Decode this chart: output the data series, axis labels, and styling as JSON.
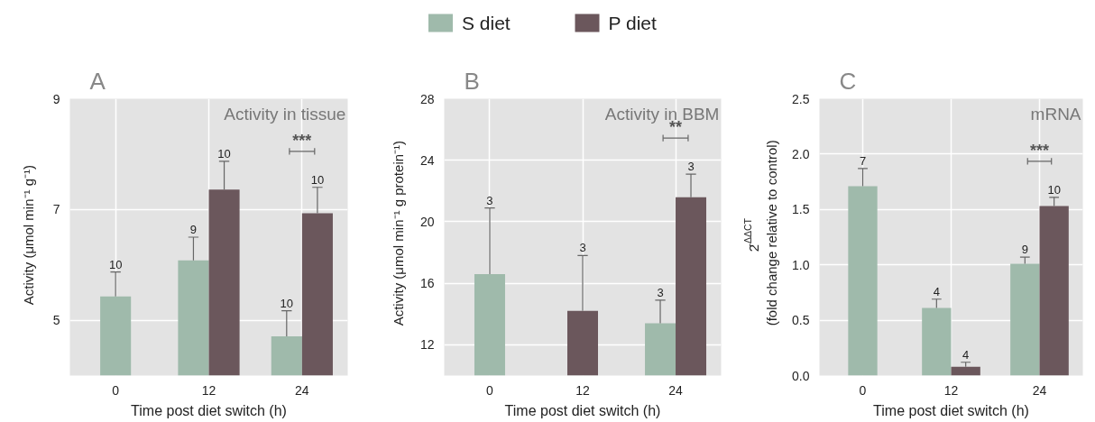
{
  "chart_data": [
    {
      "type": "bar",
      "title": "A",
      "xlabel": "Time post diet switch (h)",
      "ylabel": "Activity (μmol min⁻¹ g⁻¹)",
      "categories": [
        "0",
        "12",
        "24"
      ],
      "ylim": [
        4,
        9
      ],
      "yticks": [
        5,
        7,
        9
      ],
      "grid": true,
      "legend": "top",
      "series": [
        {
          "name": "S diet",
          "color": "#9fbaab",
          "values": [
            5.43,
            6.08,
            4.71
          ],
          "errors": [
            [
              5.43,
              5.87
            ],
            [
              6.08,
              6.5
            ],
            [
              4.71,
              5.17
            ]
          ]
        },
        {
          "name": "P diet",
          "color": "#6b575c",
          "values": [
            null,
            7.36,
            6.93
          ],
          "errors": [
            null,
            [
              7.36,
              7.87
            ],
            [
              6.93,
              7.4
            ]
          ]
        }
      ],
      "annotations": [
        "Activity in tissue",
        "***",
        "10",
        "9",
        "10",
        "10",
        "10"
      ]
    },
    {
      "type": "bar",
      "title": "B",
      "xlabel": "Time post diet switch (h)",
      "ylabel": "Activity (μmol min⁻¹ g protein⁻¹)",
      "categories": [
        "0",
        "12",
        "24"
      ],
      "ylim": [
        10,
        28
      ],
      "yticks": [
        12,
        16,
        20,
        24,
        28
      ],
      "grid": true,
      "series": [
        {
          "color": "#9fbaab",
          "values": [
            16.6,
            null,
            13.4
          ],
          "errors": [
            [
              16.6,
              20.9
            ],
            null,
            [
              13.4,
              14.9
            ]
          ]
        },
        {
          "color": "#6b575c",
          "values": [
            null,
            14.2,
            21.6
          ],
          "errors": [
            null,
            [
              14.2,
              17.8
            ],
            [
              21.6,
              23.1
            ]
          ]
        }
      ],
      "annotations": [
        "Activity in BBM",
        "**",
        "3",
        "3",
        "3",
        "3"
      ]
    },
    {
      "type": "bar",
      "title": "C",
      "xlabel": "Time post diet switch (h)",
      "ylabel": "2$^{-ΔΔCT}$\n(fold change relative to control)",
      "categories": [
        "0",
        "12",
        "24"
      ],
      "ylim": [
        0,
        2.5
      ],
      "yticks": [
        {
          "value": 0,
          "label": "0.0"
        },
        {
          "value": 0.5,
          "label": "0.5"
        },
        {
          "value": 1,
          "label": "1.0"
        },
        {
          "value": 1.5,
          "label": "1.5"
        },
        {
          "value": 2,
          "label": "2.0"
        },
        {
          "value": 2.5,
          "label": "2.5"
        }
      ],
      "grid": true,
      "series": [
        {
          "color": "#9fbaab",
          "values": [
            1.71,
            0.61,
            1.01
          ],
          "errors": [
            [
              1.71,
              1.87
            ],
            [
              0.61,
              0.69
            ],
            [
              1.01,
              1.07
            ]
          ]
        },
        {
          "color": "#6b575c",
          "values": [
            null,
            0.08,
            1.53
          ],
          "errors": [
            null,
            [
              0.08,
              0.12
            ],
            [
              1.53,
              1.61
            ]
          ]
        }
      ],
      "annotations": [
        "mRNA",
        "***",
        "7",
        "4",
        "4",
        "9",
        "10"
      ]
    }
  ]
}
